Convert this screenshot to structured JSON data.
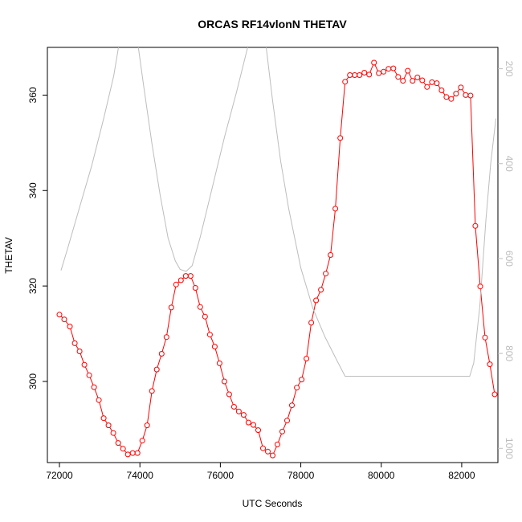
{
  "chart_data": {
    "type": "line",
    "title": "ORCAS RF14vlonN THETAV",
    "xlabel": "UTC Seconds",
    "ylabel": "THETAV",
    "xlim": [
      71700,
      82900
    ],
    "ylim": [
      283,
      370
    ],
    "x_ticks": [
      72000,
      74000,
      76000,
      78000,
      80000,
      82000
    ],
    "x_tick_labels": [
      "72000",
      "74000",
      "76000",
      "78000",
      "80000",
      "82000"
    ],
    "y_ticks": [
      300,
      320,
      340,
      360
    ],
    "y_tick_labels": [
      "300",
      "320",
      "340",
      "360"
    ],
    "right_axis": {
      "reversed": true,
      "lim": [
        1030,
        155
      ],
      "ticks": [
        200,
        400,
        600,
        800,
        1000
      ],
      "tick_labels": [
        "200",
        "400",
        "600",
        "800",
        "1000"
      ],
      "color": "#bdbdbd"
    },
    "series": [
      {
        "color": "#ff0000",
        "axis": "left",
        "marker": "open-circle",
        "points": [
          [
            72000,
            314
          ],
          [
            72120,
            313
          ],
          [
            72260,
            311.5
          ],
          [
            72380,
            308
          ],
          [
            72500,
            306.3
          ],
          [
            72620,
            303.5
          ],
          [
            72740,
            301.3
          ],
          [
            72860,
            298.8
          ],
          [
            72980,
            296.1
          ],
          [
            73100,
            292.3
          ],
          [
            73220,
            290.8
          ],
          [
            73340,
            289.2
          ],
          [
            73460,
            287.1
          ],
          [
            73580,
            285.9
          ],
          [
            73700,
            284.7
          ],
          [
            73820,
            285.0
          ],
          [
            73940,
            285.0
          ],
          [
            74060,
            287.6
          ],
          [
            74180,
            290.8
          ],
          [
            74300,
            298.0
          ],
          [
            74420,
            302.5
          ],
          [
            74540,
            305.8
          ],
          [
            74660,
            309.3
          ],
          [
            74780,
            315.5
          ],
          [
            74900,
            320.3
          ],
          [
            75020,
            321.2
          ],
          [
            75140,
            322.1
          ],
          [
            75260,
            322.1
          ],
          [
            75380,
            319.6
          ],
          [
            75500,
            315.6
          ],
          [
            75620,
            313.6
          ],
          [
            75740,
            309.8
          ],
          [
            75860,
            307.3
          ],
          [
            75980,
            303.8
          ],
          [
            76100,
            300.0
          ],
          [
            76220,
            297.3
          ],
          [
            76340,
            294.7
          ],
          [
            76460,
            293.7
          ],
          [
            76580,
            293.0
          ],
          [
            76700,
            291.4
          ],
          [
            76820,
            290.9
          ],
          [
            76940,
            289.8
          ],
          [
            77060,
            286.0
          ],
          [
            77180,
            285.3
          ],
          [
            77300,
            284.5
          ],
          [
            77420,
            286.8
          ],
          [
            77540,
            289.5
          ],
          [
            77660,
            291.8
          ],
          [
            77780,
            295.0
          ],
          [
            77900,
            298.7
          ],
          [
            78020,
            300.4
          ],
          [
            78140,
            304.8
          ],
          [
            78260,
            312.3
          ],
          [
            78380,
            317.0
          ],
          [
            78500,
            319.2
          ],
          [
            78620,
            322.6
          ],
          [
            78740,
            326.5
          ],
          [
            78860,
            336.2
          ],
          [
            78980,
            351.0
          ],
          [
            79100,
            362.8
          ],
          [
            79220,
            364.2
          ],
          [
            79340,
            364.2
          ],
          [
            79460,
            364.2
          ],
          [
            79580,
            364.7
          ],
          [
            79700,
            364.3
          ],
          [
            79820,
            366.8
          ],
          [
            79940,
            364.6
          ],
          [
            80060,
            364.9
          ],
          [
            80180,
            365.5
          ],
          [
            80300,
            365.6
          ],
          [
            80420,
            363.8
          ],
          [
            80540,
            363.0
          ],
          [
            80660,
            365.1
          ],
          [
            80780,
            363.0
          ],
          [
            80900,
            363.7
          ],
          [
            81020,
            363.1
          ],
          [
            81140,
            361.7
          ],
          [
            81260,
            362.7
          ],
          [
            81380,
            362.5
          ],
          [
            81500,
            361.0
          ],
          [
            81620,
            359.6
          ],
          [
            81740,
            359.2
          ],
          [
            81860,
            360.3
          ],
          [
            81980,
            361.6
          ],
          [
            82100,
            360.0
          ],
          [
            82220,
            359.9
          ],
          [
            82340,
            332.6
          ],
          [
            82460,
            319.9
          ],
          [
            82580,
            309.2
          ],
          [
            82700,
            303.6
          ],
          [
            82820,
            297.3
          ]
        ]
      },
      {
        "color": "#bdbdbd",
        "axis": "right",
        "marker": "none",
        "points": [
          [
            72040,
            625
          ],
          [
            72200,
            580
          ],
          [
            72500,
            492
          ],
          [
            72800,
            405
          ],
          [
            73100,
            305
          ],
          [
            73350,
            215
          ],
          [
            73480,
            148
          ],
          [
            73950,
            148
          ],
          [
            74100,
            240
          ],
          [
            74300,
            358
          ],
          [
            74500,
            465
          ],
          [
            74700,
            557
          ],
          [
            74880,
            605
          ],
          [
            75000,
            623
          ],
          [
            75150,
            627
          ],
          [
            75300,
            615
          ],
          [
            75500,
            555
          ],
          [
            75800,
            450
          ],
          [
            76100,
            345
          ],
          [
            76400,
            250
          ],
          [
            76700,
            148
          ],
          [
            77130,
            148
          ],
          [
            77300,
            268
          ],
          [
            77500,
            395
          ],
          [
            77700,
            495
          ],
          [
            78000,
            620
          ],
          [
            78300,
            705
          ],
          [
            78600,
            765
          ],
          [
            78900,
            815
          ],
          [
            79100,
            848
          ],
          [
            79300,
            848
          ],
          [
            79700,
            848
          ],
          [
            80200,
            848
          ],
          [
            80800,
            848
          ],
          [
            81500,
            848
          ],
          [
            82200,
            848
          ],
          [
            82300,
            820
          ],
          [
            82450,
            700
          ],
          [
            82600,
            520
          ],
          [
            82720,
            400
          ],
          [
            82850,
            305
          ]
        ]
      }
    ]
  }
}
